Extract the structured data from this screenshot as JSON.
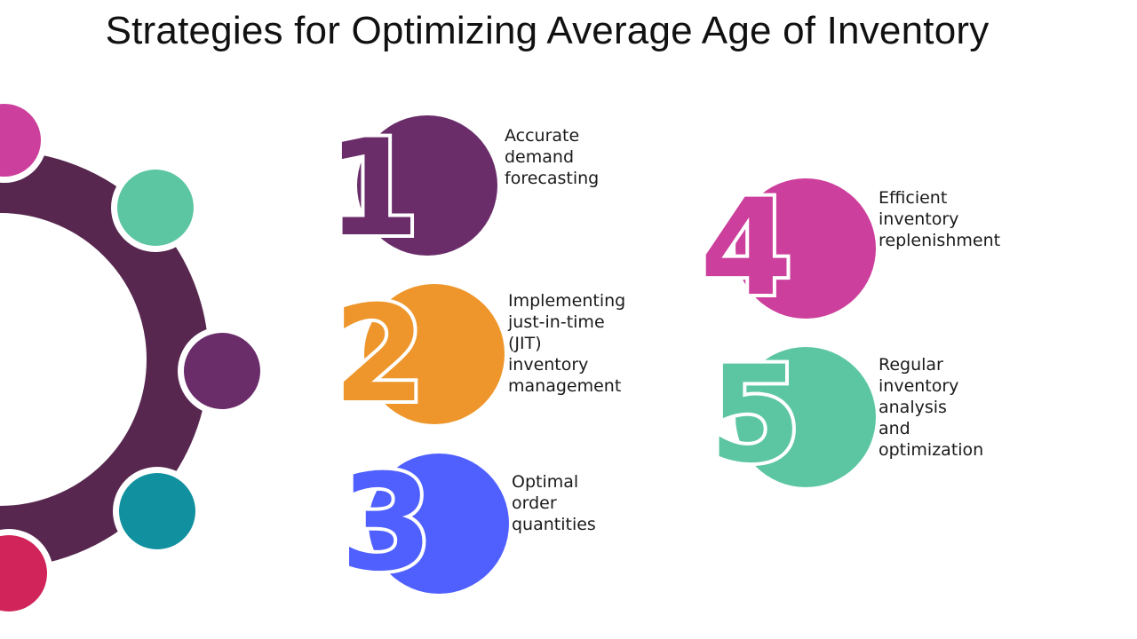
{
  "title": "Strategies for Optimizing Average Age of Inventory",
  "colors": {
    "ring": "#57274f",
    "purple": "#6a2d6a",
    "orange": "#ee962b",
    "blue": "#5060ff",
    "pink": "#cc3f9c",
    "green": "#5cc6a2",
    "teal": "#11919f",
    "red": "#d0245a"
  },
  "steps": [
    {
      "number": "1",
      "label": "Accurate demand\nforecasting",
      "color": "#6a2d6a"
    },
    {
      "number": "2",
      "label": "Implementing\njust-in-time (JIT)\ninventory management",
      "color": "#ee962b"
    },
    {
      "number": "3",
      "label": "Optimal order\nquantities",
      "color": "#5060ff"
    },
    {
      "number": "4",
      "label": "Efficient inventory\nreplenishment",
      "color": "#cc3f9c"
    },
    {
      "number": "5",
      "label": "Regular inventory\nanalysis and\noptimization",
      "color": "#5cc6a2"
    }
  ]
}
